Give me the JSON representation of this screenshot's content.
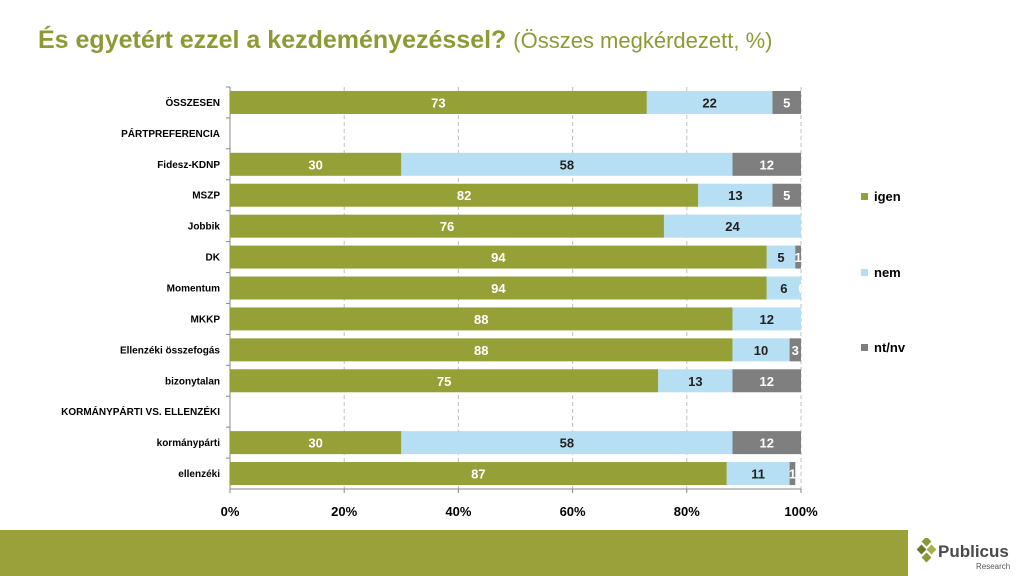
{
  "header": {
    "title_main": "És egyetért ezzel a kezdeményezéssel?",
    "title_sub": "(Összes megkérdezett, %)"
  },
  "chart_data": {
    "type": "bar",
    "orientation": "horizontal",
    "stacked": "percent",
    "title": "És egyetért ezzel a kezdeményezéssel? (Összes megkérdezett, %)",
    "categories": [
      "ÖSSZESEN",
      "PÁRTPREFERENCIA",
      "Fidesz-KDNP",
      "MSZP",
      "Jobbik",
      "DK",
      "Momentum",
      "MKKP",
      "Ellenzéki összefogás",
      "bizonytalan",
      "KORMÁNYPÁRTI VS. ELLENZÉKI",
      "kormánypárti",
      "ellenzéki"
    ],
    "series": [
      {
        "name": "igen",
        "color": "#95a037",
        "label_color": "#ffffff",
        "values": [
          73,
          null,
          30,
          82,
          76,
          94,
          94,
          88,
          88,
          75,
          null,
          30,
          87
        ]
      },
      {
        "name": "nem",
        "color": "#b7dff3",
        "label_color": "#222222",
        "values": [
          22,
          null,
          58,
          13,
          24,
          5,
          6,
          12,
          10,
          13,
          null,
          58,
          11
        ]
      },
      {
        "name": "nt/nv",
        "color": "#7f7f7f",
        "label_color": "#ffffff",
        "values": [
          5,
          null,
          12,
          5,
          null,
          1,
          0,
          null,
          3,
          12,
          null,
          12,
          1
        ]
      }
    ],
    "xlim": [
      0,
      100
    ],
    "x_ticks": [
      "0%",
      "20%",
      "40%",
      "60%",
      "80%",
      "100%"
    ],
    "grid": "vertical-dashed",
    "legend_position": "right"
  },
  "logo": {
    "name": "Publicus",
    "tagline": "Research"
  }
}
